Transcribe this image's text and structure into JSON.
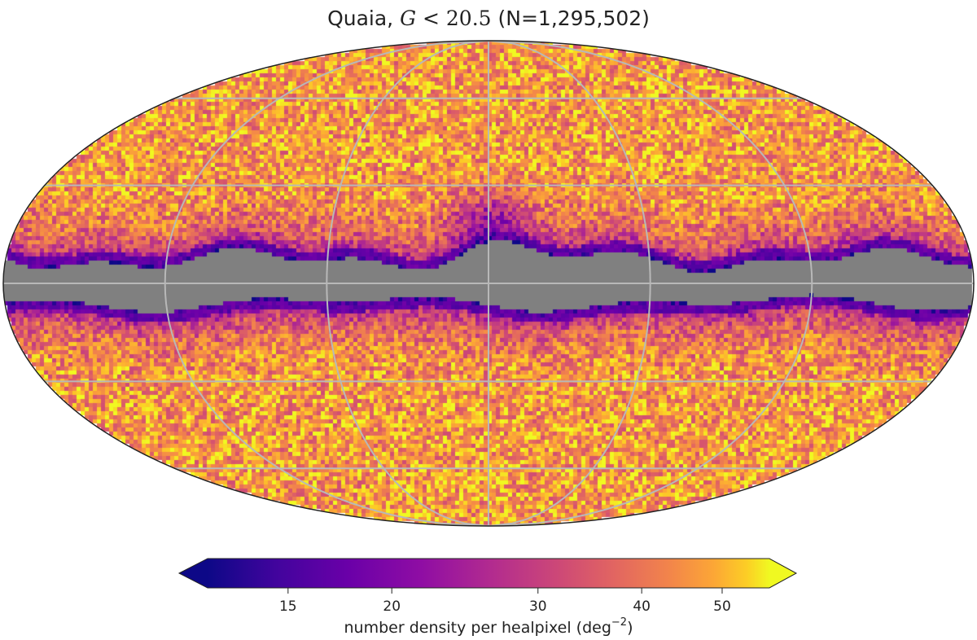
{
  "chart_data": {
    "type": "heatmap",
    "projection": "mollweide",
    "title_prefix": "Quaia, ",
    "title_math_var": "G",
    "title_math_rel": " < 20.5",
    "title_suffix": " (N=1,295,502)",
    "colormap": "plasma",
    "colorbar": {
      "label_text": "number density per healpixel (deg",
      "label_exponent": "−2",
      "label_close": ")",
      "ticks": [
        {
          "value": 15,
          "label": "15"
        },
        {
          "value": 20,
          "label": "20"
        },
        {
          "value": 30,
          "label": "30"
        },
        {
          "value": 40,
          "label": "40"
        },
        {
          "value": 50,
          "label": "50"
        }
      ],
      "range": [
        12,
        57
      ],
      "scale": "log",
      "extend": "both"
    },
    "grid": true,
    "masked_color": "#808080",
    "masked_region": "galactic plane"
  }
}
